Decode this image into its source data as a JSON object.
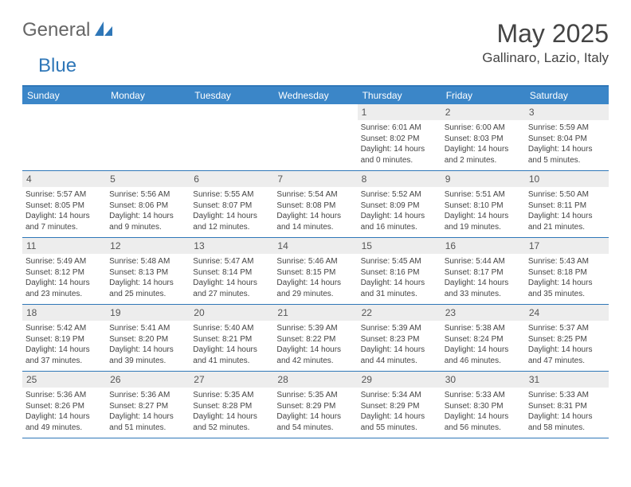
{
  "brand": {
    "part1": "General",
    "part2": "Blue"
  },
  "title": "May 2025",
  "location": "Gallinaro, Lazio, Italy",
  "colors": {
    "header_bg": "#3b86c8",
    "border": "#2f77b8",
    "daynum_bg": "#ededed",
    "text": "#444444",
    "page_bg": "#ffffff"
  },
  "weekdays": [
    "Sunday",
    "Monday",
    "Tuesday",
    "Wednesday",
    "Thursday",
    "Friday",
    "Saturday"
  ],
  "weeks": [
    [
      {
        "n": "",
        "sr": "",
        "ss": "",
        "dl": ""
      },
      {
        "n": "",
        "sr": "",
        "ss": "",
        "dl": ""
      },
      {
        "n": "",
        "sr": "",
        "ss": "",
        "dl": ""
      },
      {
        "n": "",
        "sr": "",
        "ss": "",
        "dl": ""
      },
      {
        "n": "1",
        "sr": "6:01 AM",
        "ss": "8:02 PM",
        "dl": "14 hours and 0 minutes."
      },
      {
        "n": "2",
        "sr": "6:00 AM",
        "ss": "8:03 PM",
        "dl": "14 hours and 2 minutes."
      },
      {
        "n": "3",
        "sr": "5:59 AM",
        "ss": "8:04 PM",
        "dl": "14 hours and 5 minutes."
      }
    ],
    [
      {
        "n": "4",
        "sr": "5:57 AM",
        "ss": "8:05 PM",
        "dl": "14 hours and 7 minutes."
      },
      {
        "n": "5",
        "sr": "5:56 AM",
        "ss": "8:06 PM",
        "dl": "14 hours and 9 minutes."
      },
      {
        "n": "6",
        "sr": "5:55 AM",
        "ss": "8:07 PM",
        "dl": "14 hours and 12 minutes."
      },
      {
        "n": "7",
        "sr": "5:54 AM",
        "ss": "8:08 PM",
        "dl": "14 hours and 14 minutes."
      },
      {
        "n": "8",
        "sr": "5:52 AM",
        "ss": "8:09 PM",
        "dl": "14 hours and 16 minutes."
      },
      {
        "n": "9",
        "sr": "5:51 AM",
        "ss": "8:10 PM",
        "dl": "14 hours and 19 minutes."
      },
      {
        "n": "10",
        "sr": "5:50 AM",
        "ss": "8:11 PM",
        "dl": "14 hours and 21 minutes."
      }
    ],
    [
      {
        "n": "11",
        "sr": "5:49 AM",
        "ss": "8:12 PM",
        "dl": "14 hours and 23 minutes."
      },
      {
        "n": "12",
        "sr": "5:48 AM",
        "ss": "8:13 PM",
        "dl": "14 hours and 25 minutes."
      },
      {
        "n": "13",
        "sr": "5:47 AM",
        "ss": "8:14 PM",
        "dl": "14 hours and 27 minutes."
      },
      {
        "n": "14",
        "sr": "5:46 AM",
        "ss": "8:15 PM",
        "dl": "14 hours and 29 minutes."
      },
      {
        "n": "15",
        "sr": "5:45 AM",
        "ss": "8:16 PM",
        "dl": "14 hours and 31 minutes."
      },
      {
        "n": "16",
        "sr": "5:44 AM",
        "ss": "8:17 PM",
        "dl": "14 hours and 33 minutes."
      },
      {
        "n": "17",
        "sr": "5:43 AM",
        "ss": "8:18 PM",
        "dl": "14 hours and 35 minutes."
      }
    ],
    [
      {
        "n": "18",
        "sr": "5:42 AM",
        "ss": "8:19 PM",
        "dl": "14 hours and 37 minutes."
      },
      {
        "n": "19",
        "sr": "5:41 AM",
        "ss": "8:20 PM",
        "dl": "14 hours and 39 minutes."
      },
      {
        "n": "20",
        "sr": "5:40 AM",
        "ss": "8:21 PM",
        "dl": "14 hours and 41 minutes."
      },
      {
        "n": "21",
        "sr": "5:39 AM",
        "ss": "8:22 PM",
        "dl": "14 hours and 42 minutes."
      },
      {
        "n": "22",
        "sr": "5:39 AM",
        "ss": "8:23 PM",
        "dl": "14 hours and 44 minutes."
      },
      {
        "n": "23",
        "sr": "5:38 AM",
        "ss": "8:24 PM",
        "dl": "14 hours and 46 minutes."
      },
      {
        "n": "24",
        "sr": "5:37 AM",
        "ss": "8:25 PM",
        "dl": "14 hours and 47 minutes."
      }
    ],
    [
      {
        "n": "25",
        "sr": "5:36 AM",
        "ss": "8:26 PM",
        "dl": "14 hours and 49 minutes."
      },
      {
        "n": "26",
        "sr": "5:36 AM",
        "ss": "8:27 PM",
        "dl": "14 hours and 51 minutes."
      },
      {
        "n": "27",
        "sr": "5:35 AM",
        "ss": "8:28 PM",
        "dl": "14 hours and 52 minutes."
      },
      {
        "n": "28",
        "sr": "5:35 AM",
        "ss": "8:29 PM",
        "dl": "14 hours and 54 minutes."
      },
      {
        "n": "29",
        "sr": "5:34 AM",
        "ss": "8:29 PM",
        "dl": "14 hours and 55 minutes."
      },
      {
        "n": "30",
        "sr": "5:33 AM",
        "ss": "8:30 PM",
        "dl": "14 hours and 56 minutes."
      },
      {
        "n": "31",
        "sr": "5:33 AM",
        "ss": "8:31 PM",
        "dl": "14 hours and 58 minutes."
      }
    ]
  ],
  "labels": {
    "sunrise": "Sunrise: ",
    "sunset": "Sunset: ",
    "daylight": "Daylight: "
  }
}
